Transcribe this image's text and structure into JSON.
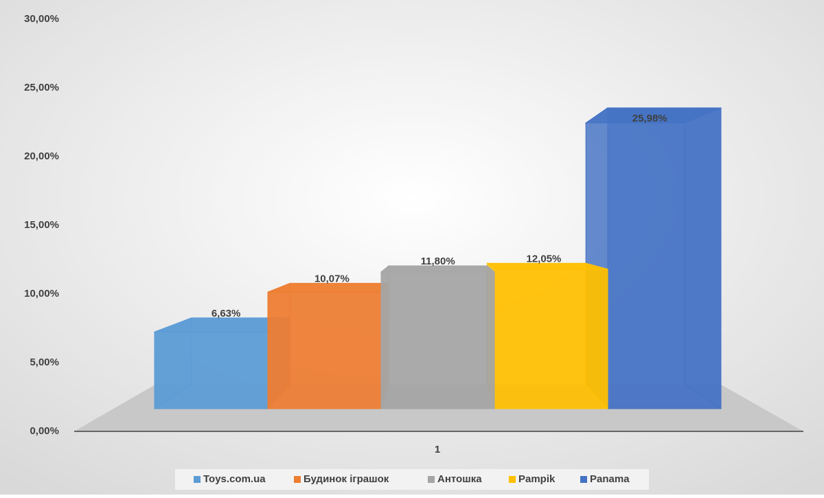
{
  "chart_data": {
    "type": "bar3d",
    "categories": [
      "1"
    ],
    "series": [
      {
        "name": "Toys.com.ua",
        "color": "#5b9bd5",
        "values": [
          6.63
        ],
        "value_labels": [
          "6,63%"
        ]
      },
      {
        "name": "Будинок іграшок",
        "color": "#ed7d31",
        "values": [
          10.07
        ],
        "value_labels": [
          "10,07%"
        ]
      },
      {
        "name": "Антошка",
        "color": "#a5a5a5",
        "values": [
          11.8
        ],
        "value_labels": [
          "11,80%"
        ]
      },
      {
        "name": "Pampik",
        "color": "#ffc000",
        "values": [
          12.05
        ],
        "value_labels": [
          "12,05%"
        ]
      },
      {
        "name": "Panama",
        "color": "#4472c4",
        "values": [
          25.98
        ],
        "value_labels": [
          "25,98%"
        ]
      }
    ],
    "ylim": [
      0,
      30
    ],
    "yticks": [
      {
        "value": 0,
        "label": "0,00%"
      },
      {
        "value": 5,
        "label": "5,00%"
      },
      {
        "value": 10,
        "label": "10,00%"
      },
      {
        "value": 15,
        "label": "15,00%"
      },
      {
        "value": 20,
        "label": "20,00%"
      },
      {
        "value": 25,
        "label": "25,00%"
      },
      {
        "value": 30,
        "label": "30,00%"
      }
    ],
    "legend": "bottom"
  }
}
